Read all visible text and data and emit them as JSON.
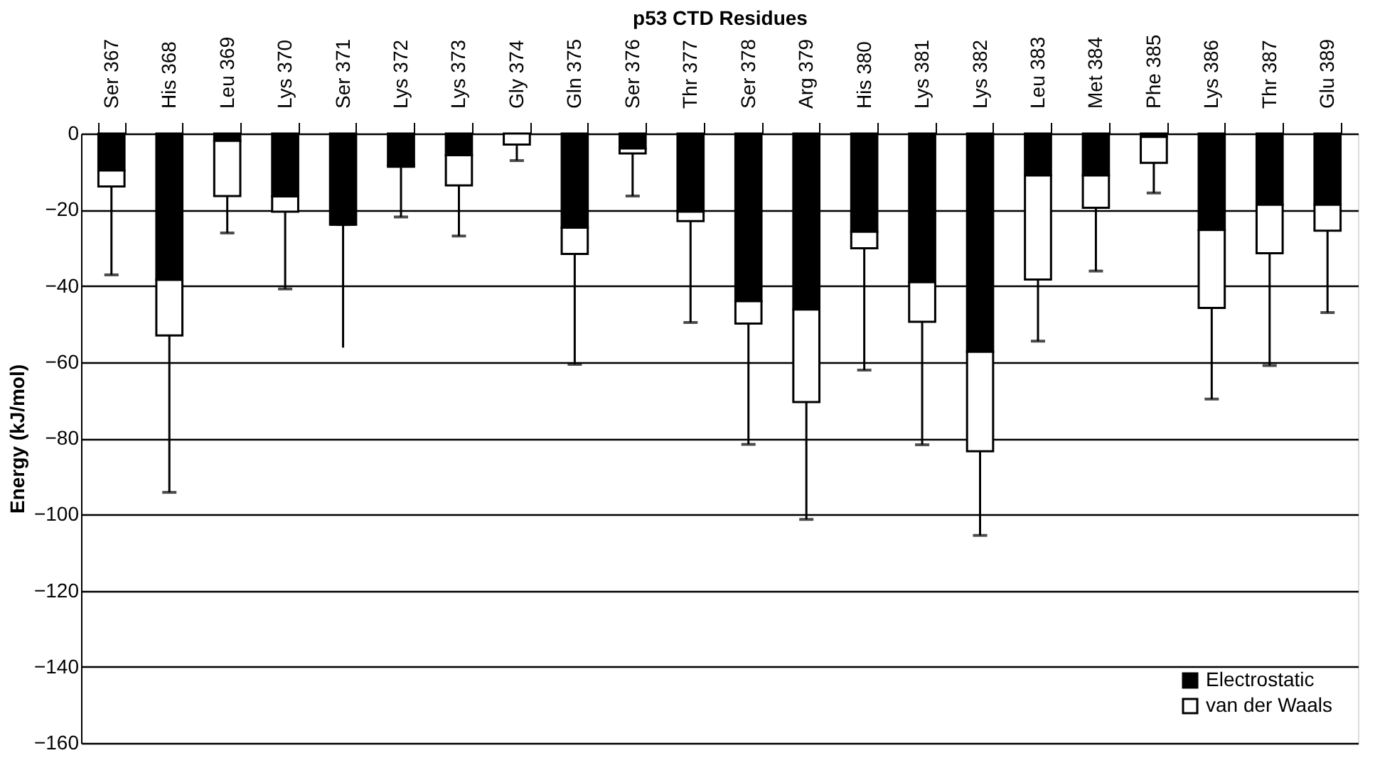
{
  "chart_data": {
    "type": "bar",
    "stacked": true,
    "xlabel": "p53 CTD Residues",
    "ylabel": "Energy (kJ/mol)",
    "categories": [
      "Ser 367",
      "His 368",
      "Leu 369",
      "Lys 370",
      "Ser 371",
      "Lys 372",
      "Lys 373",
      "Gly 374",
      "Gln 375",
      "Ser 376",
      "Thr 377",
      "Ser 378",
      "Arg 379",
      "His 380",
      "Lys 381",
      "Lys 382",
      "Leu 383",
      "Met 384",
      "Phe 385",
      "Lys 386",
      "Thr 387",
      "Glu 389"
    ],
    "series": [
      {
        "name": "Electrostatic",
        "color": "#000000",
        "values": [
          -9.7,
          -38.4,
          -1.9,
          -16.5,
          -23.9,
          -8.2,
          -5.7,
          null,
          -24.7,
          -3.9,
          -20.5,
          -44.0,
          -46.2,
          -25.8,
          -39.0,
          -57.3,
          -11.0,
          -11.0,
          -0.9,
          -25.3,
          -18.7,
          -18.7
        ]
      },
      {
        "name": "van der Waals",
        "color": "#ffffff",
        "values": [
          -4.2,
          -14.6,
          -14.5,
          -4.0,
          0,
          -0.5,
          -7.9,
          -2.9,
          -6.9,
          -1.3,
          -2.5,
          -5.9,
          -24.3,
          -4.3,
          -10.4,
          -26.1,
          -27.3,
          -8.5,
          -6.8,
          -20.5,
          -12.7,
          -6.8
        ],
        "errors": [
          [
            -37.1,
            -13.9
          ],
          [
            -94.2,
            -53.0
          ],
          [
            -26.1,
            -16.4
          ],
          [
            -40.8,
            -20.5
          ],
          [
            -56.2,
            -23.9
          ],
          [
            -21.9,
            -8.7
          ],
          [
            -26.9,
            -13.6
          ],
          [
            -7.1,
            -3.2
          ],
          [
            -60.6,
            -31.6
          ],
          [
            -16.4,
            -5.2
          ],
          [
            -49.6,
            -23.0
          ],
          [
            -81.6,
            -49.9
          ],
          [
            -101.3,
            -70.5
          ],
          [
            -62.1,
            -30.1
          ],
          [
            -81.7,
            -49.4
          ],
          [
            -105.5,
            -83.4
          ],
          [
            -54.5,
            -38.3
          ],
          [
            -36.1,
            -19.5
          ],
          [
            -15.6,
            -7.7
          ],
          [
            -69.7,
            -45.8
          ],
          [
            -60.9,
            -31.4
          ],
          [
            -47.0,
            -25.5
          ]
        ]
      }
    ],
    "ylim": [
      -160,
      0
    ],
    "yticks": [
      0,
      -20,
      -40,
      -60,
      -80,
      -100,
      -120,
      -140,
      -160
    ],
    "grid": "y",
    "legend": "bottom right"
  }
}
